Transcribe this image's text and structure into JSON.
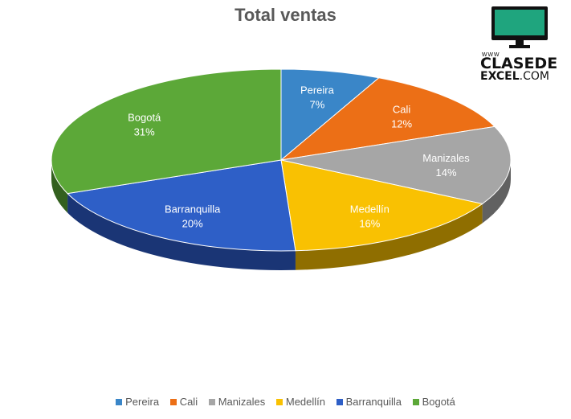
{
  "chart_data": {
    "type": "pie",
    "title": "Total ventas",
    "categories": [
      "Pereira",
      "Cali",
      "Manizales",
      "Medellín",
      "Barranquilla",
      "Bogotá"
    ],
    "values": [
      7,
      12,
      14,
      16,
      20,
      31
    ],
    "value_labels": [
      "7%",
      "12%",
      "14%",
      "16%",
      "20%",
      "31%"
    ],
    "colors": [
      "#3a86c8",
      "#ec6f16",
      "#a6a6a6",
      "#f9c102",
      "#2e5fc7",
      "#5ca838"
    ],
    "side_colors": [
      "#1f4e7a",
      "#8e4208",
      "#616161",
      "#8f6e00",
      "#1a3575",
      "#33601f"
    ],
    "label_colors": [
      "#ffffff",
      "#ffffff",
      "#ffffff",
      "#ffffff",
      "#ffffff",
      "#ffffff"
    ],
    "legend_position": "bottom",
    "style": "3d"
  },
  "logo": {
    "www": "www",
    "line1": "CLASEDE",
    "line2": "EXCEL",
    "line2_suffix": ".COM",
    "accent": "#1fa57e"
  }
}
